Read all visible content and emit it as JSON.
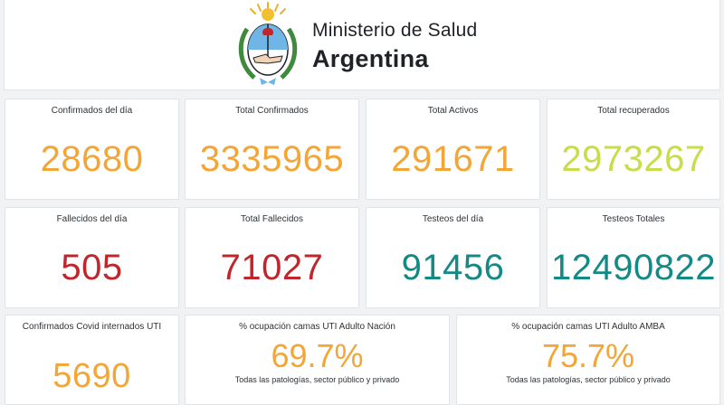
{
  "header": {
    "ministry": "Ministerio de Salud",
    "country": "Argentina",
    "emblem_icon": "argentina-coat-of-arms-icon"
  },
  "colors": {
    "orange": "#f3a536",
    "lime": "#c9dc4a",
    "red": "#c0272d",
    "teal": "#138a86"
  },
  "row1": [
    {
      "label": "Confirmados del día",
      "value": "28680",
      "color": "#f3a536"
    },
    {
      "label": "Total Confirmados",
      "value": "3335965",
      "color": "#f3a536"
    },
    {
      "label": "Total Activos",
      "value": "291671",
      "color": "#f3a536"
    },
    {
      "label": "Total recuperados",
      "value": "2973267",
      "color": "#c9dc4a"
    }
  ],
  "row2": [
    {
      "label": "Fallecidos del día",
      "value": "505",
      "color": "#c0272d"
    },
    {
      "label": "Total Fallecidos",
      "value": "71027",
      "color": "#c0272d"
    },
    {
      "label": "Testeos del día",
      "value": "91456",
      "color": "#138a86"
    },
    {
      "label": "Testeos Totales",
      "value": "12490822",
      "color": "#138a86"
    }
  ],
  "row3": {
    "uti": {
      "label": "Confirmados Covid internados UTI",
      "value": "5690",
      "color": "#f3a536"
    },
    "nacion": {
      "label": "% ocupación camas UTI Adulto Nación",
      "value": "69.7%",
      "note": "Todas las patologías, sector público y privado",
      "color": "#f3a536"
    },
    "amba": {
      "label": "% ocupación camas UTI Adulto AMBA",
      "value": "75.7%",
      "note": "Todas las patologías, sector público y privado",
      "color": "#f3a536"
    }
  }
}
